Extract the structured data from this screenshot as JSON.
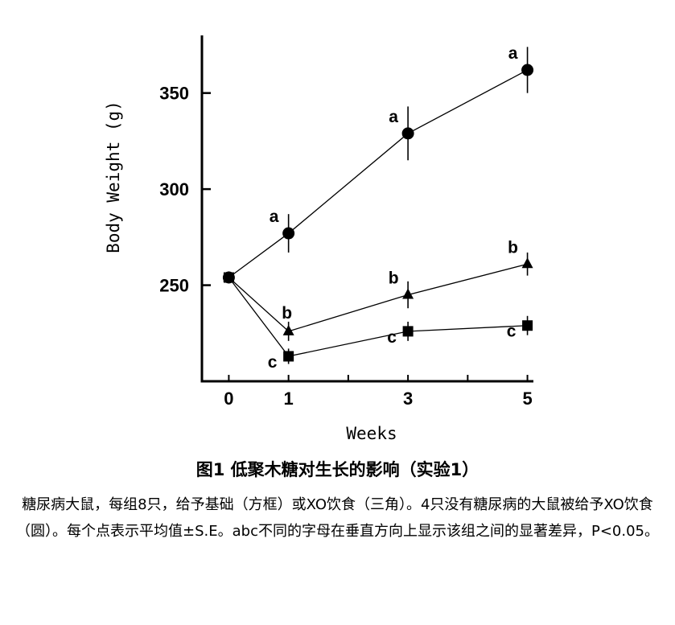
{
  "chart_data": {
    "type": "line",
    "xlabel": "Weeks",
    "ylabel": "Body  Weight (g)",
    "x": [
      0,
      1,
      3,
      5
    ],
    "x_ticks": [
      0,
      1,
      3,
      5
    ],
    "y_ticks": [
      250,
      300,
      350
    ],
    "xlim": [
      -0.45,
      5.1
    ],
    "ylim": [
      200,
      380
    ],
    "grid": false,
    "series": [
      {
        "marker": "circle",
        "values": [
          254,
          277,
          329,
          362
        ],
        "error": [
          null,
          10,
          14,
          12
        ],
        "labels": [
          "",
          "a",
          "a",
          "a"
        ]
      },
      {
        "marker": "triangle",
        "values": [
          254,
          226,
          245,
          261
        ],
        "error": [
          null,
          5,
          7,
          6
        ],
        "labels": [
          "",
          "b",
          "b",
          "b"
        ]
      },
      {
        "marker": "square",
        "values": [
          254,
          213,
          226,
          229
        ],
        "error": [
          null,
          4,
          5,
          5
        ],
        "labels": [
          "",
          "c",
          "c",
          "c"
        ]
      }
    ]
  },
  "caption": {
    "title": "图1 低聚木糖对生长的影响（实验1）",
    "body": "糖尿病大鼠，每组8只，给予基础（方框）或XO饮食（三角）。4只没有糖尿病的大鼠被给予XO饮食（圆）。每个点表示平均值±S.E。abc不同的字母在垂直方向上显示该组之间的显著差异，P<0.05。"
  }
}
